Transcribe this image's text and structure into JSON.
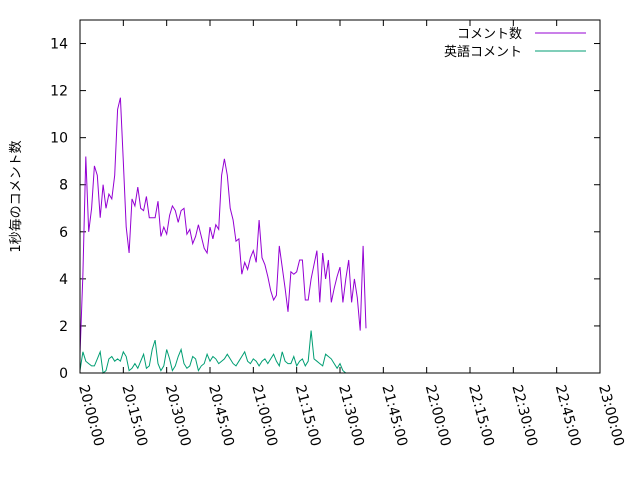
{
  "chart_data": {
    "type": "line",
    "title": "",
    "xlabel": "",
    "ylabel": "1秒毎のコメント数",
    "ylim": [
      0,
      15
    ],
    "xlim": [
      "20:00:00",
      "23:00:00"
    ],
    "yticks": [
      0,
      2,
      4,
      6,
      8,
      10,
      12,
      14
    ],
    "xticks": [
      "20:00:00",
      "20:15:00",
      "20:30:00",
      "20:45:00",
      "21:00:00",
      "21:15:00",
      "21:30:00",
      "21:45:00",
      "22:00:00",
      "22:15:00",
      "22:30:00",
      "22:45:00",
      "23:00:00"
    ],
    "legend_position": "top-right",
    "grid": false,
    "series": [
      {
        "name": "コメント数",
        "color": "#9400d3",
        "points": [
          [
            "20:00:00",
            0.8
          ],
          [
            "20:01:00",
            4.2
          ],
          [
            "20:02:00",
            9.2
          ],
          [
            "20:03:00",
            6.0
          ],
          [
            "20:04:00",
            7.0
          ],
          [
            "20:05:00",
            8.8
          ],
          [
            "20:06:00",
            8.4
          ],
          [
            "20:07:00",
            6.6
          ],
          [
            "20:08:00",
            8.0
          ],
          [
            "20:09:00",
            7.0
          ],
          [
            "20:10:00",
            7.6
          ],
          [
            "20:11:00",
            7.4
          ],
          [
            "20:12:00",
            8.4
          ],
          [
            "20:13:00",
            11.2
          ],
          [
            "20:14:00",
            11.7
          ],
          [
            "20:15:00",
            9.0
          ],
          [
            "20:16:00",
            6.2
          ],
          [
            "20:17:00",
            5.1
          ],
          [
            "20:18:00",
            7.4
          ],
          [
            "20:19:00",
            7.1
          ],
          [
            "20:20:00",
            7.9
          ],
          [
            "20:21:00",
            7.0
          ],
          [
            "20:22:00",
            6.9
          ],
          [
            "20:23:00",
            7.5
          ],
          [
            "20:24:00",
            6.6
          ],
          [
            "20:25:00",
            6.6
          ],
          [
            "20:26:00",
            6.6
          ],
          [
            "20:27:00",
            7.3
          ],
          [
            "20:28:00",
            5.8
          ],
          [
            "20:29:00",
            6.2
          ],
          [
            "20:30:00",
            5.9
          ],
          [
            "20:31:00",
            6.7
          ],
          [
            "20:32:00",
            7.1
          ],
          [
            "20:33:00",
            6.9
          ],
          [
            "20:34:00",
            6.4
          ],
          [
            "20:35:00",
            6.9
          ],
          [
            "20:36:00",
            7.0
          ],
          [
            "20:37:00",
            5.9
          ],
          [
            "20:38:00",
            6.1
          ],
          [
            "20:39:00",
            5.5
          ],
          [
            "20:40:00",
            5.8
          ],
          [
            "20:41:00",
            6.3
          ],
          [
            "20:42:00",
            5.8
          ],
          [
            "20:43:00",
            5.3
          ],
          [
            "20:44:00",
            5.1
          ],
          [
            "20:45:00",
            6.2
          ],
          [
            "20:46:00",
            5.7
          ],
          [
            "20:47:00",
            6.3
          ],
          [
            "20:48:00",
            6.1
          ],
          [
            "20:49:00",
            8.4
          ],
          [
            "20:50:00",
            9.1
          ],
          [
            "20:51:00",
            8.4
          ],
          [
            "20:52:00",
            7.0
          ],
          [
            "20:53:00",
            6.5
          ],
          [
            "20:54:00",
            5.6
          ],
          [
            "20:55:00",
            5.7
          ],
          [
            "20:56:00",
            4.2
          ],
          [
            "20:57:00",
            4.7
          ],
          [
            "20:58:00",
            4.4
          ],
          [
            "20:59:00",
            4.9
          ],
          [
            "21:00:00",
            5.2
          ],
          [
            "21:01:00",
            4.7
          ],
          [
            "21:02:00",
            6.5
          ],
          [
            "21:03:00",
            4.9
          ],
          [
            "21:04:00",
            4.6
          ],
          [
            "21:05:00",
            4.1
          ],
          [
            "21:06:00",
            3.5
          ],
          [
            "21:07:00",
            3.1
          ],
          [
            "21:08:00",
            3.3
          ],
          [
            "21:09:00",
            5.4
          ],
          [
            "21:10:00",
            4.5
          ],
          [
            "21:11:00",
            3.6
          ],
          [
            "21:12:00",
            2.6
          ],
          [
            "21:13:00",
            4.3
          ],
          [
            "21:14:00",
            4.2
          ],
          [
            "21:15:00",
            4.3
          ],
          [
            "21:16:00",
            4.8
          ],
          [
            "21:17:00",
            4.8
          ],
          [
            "21:18:00",
            3.1
          ],
          [
            "21:19:00",
            3.1
          ],
          [
            "21:20:00",
            4.0
          ],
          [
            "21:21:00",
            4.6
          ],
          [
            "21:22:00",
            5.2
          ],
          [
            "21:23:00",
            3.0
          ],
          [
            "21:24:00",
            5.1
          ],
          [
            "21:25:00",
            4.0
          ],
          [
            "21:26:00",
            4.8
          ],
          [
            "21:27:00",
            3.0
          ],
          [
            "21:28:00",
            3.6
          ],
          [
            "21:29:00",
            4.1
          ],
          [
            "21:30:00",
            4.5
          ],
          [
            "21:31:00",
            3.0
          ],
          [
            "21:32:00",
            4.0
          ],
          [
            "21:33:00",
            4.8
          ],
          [
            "21:34:00",
            3.0
          ],
          [
            "21:35:00",
            4.0
          ],
          [
            "21:36:00",
            3.2
          ],
          [
            "21:37:00",
            1.8
          ],
          [
            "21:38:00",
            5.4
          ],
          [
            "21:39:00",
            1.9
          ]
        ]
      },
      {
        "name": "英語コメント",
        "color": "#009e73",
        "points": [
          [
            "20:00:00",
            0.1
          ],
          [
            "20:01:00",
            0.9
          ],
          [
            "20:02:00",
            0.5
          ],
          [
            "20:03:00",
            0.4
          ],
          [
            "20:04:00",
            0.3
          ],
          [
            "20:05:00",
            0.3
          ],
          [
            "20:06:00",
            0.6
          ],
          [
            "20:07:00",
            0.9
          ],
          [
            "20:08:00",
            0.0
          ],
          [
            "20:09:00",
            0.1
          ],
          [
            "20:10:00",
            0.6
          ],
          [
            "20:11:00",
            0.7
          ],
          [
            "20:12:00",
            0.5
          ],
          [
            "20:13:00",
            0.6
          ],
          [
            "20:14:00",
            0.5
          ],
          [
            "20:15:00",
            0.9
          ],
          [
            "20:16:00",
            0.7
          ],
          [
            "20:17:00",
            0.1
          ],
          [
            "20:18:00",
            0.2
          ],
          [
            "20:19:00",
            0.4
          ],
          [
            "20:20:00",
            0.2
          ],
          [
            "20:21:00",
            0.5
          ],
          [
            "20:22:00",
            0.8
          ],
          [
            "20:23:00",
            0.2
          ],
          [
            "20:24:00",
            0.3
          ],
          [
            "20:25:00",
            1.0
          ],
          [
            "20:26:00",
            1.4
          ],
          [
            "20:27:00",
            0.4
          ],
          [
            "20:28:00",
            0.1
          ],
          [
            "20:29:00",
            0.3
          ],
          [
            "20:30:00",
            1.0
          ],
          [
            "20:31:00",
            0.6
          ],
          [
            "20:32:00",
            0.1
          ],
          [
            "20:33:00",
            0.3
          ],
          [
            "20:34:00",
            0.7
          ],
          [
            "20:35:00",
            1.0
          ],
          [
            "20:36:00",
            0.4
          ],
          [
            "20:37:00",
            0.2
          ],
          [
            "20:38:00",
            0.3
          ],
          [
            "20:39:00",
            0.7
          ],
          [
            "20:40:00",
            0.6
          ],
          [
            "20:41:00",
            0.1
          ],
          [
            "20:42:00",
            0.3
          ],
          [
            "20:43:00",
            0.4
          ],
          [
            "20:44:00",
            0.8
          ],
          [
            "20:45:00",
            0.5
          ],
          [
            "20:46:00",
            0.7
          ],
          [
            "20:47:00",
            0.6
          ],
          [
            "20:48:00",
            0.4
          ],
          [
            "20:49:00",
            0.5
          ],
          [
            "20:50:00",
            0.6
          ],
          [
            "20:51:00",
            0.8
          ],
          [
            "20:52:00",
            0.6
          ],
          [
            "20:53:00",
            0.4
          ],
          [
            "20:54:00",
            0.3
          ],
          [
            "20:55:00",
            0.5
          ],
          [
            "20:56:00",
            0.7
          ],
          [
            "20:57:00",
            0.9
          ],
          [
            "20:58:00",
            0.5
          ],
          [
            "20:59:00",
            0.4
          ],
          [
            "21:00:00",
            0.6
          ],
          [
            "21:01:00",
            0.5
          ],
          [
            "21:02:00",
            0.3
          ],
          [
            "21:03:00",
            0.5
          ],
          [
            "21:04:00",
            0.6
          ],
          [
            "21:05:00",
            0.4
          ],
          [
            "21:06:00",
            0.6
          ],
          [
            "21:07:00",
            0.8
          ],
          [
            "21:08:00",
            0.5
          ],
          [
            "21:09:00",
            0.3
          ],
          [
            "21:10:00",
            0.9
          ],
          [
            "21:11:00",
            0.5
          ],
          [
            "21:12:00",
            0.4
          ],
          [
            "21:13:00",
            0.4
          ],
          [
            "21:14:00",
            0.7
          ],
          [
            "21:15:00",
            0.3
          ],
          [
            "21:16:00",
            0.5
          ],
          [
            "21:17:00",
            0.6
          ],
          [
            "21:18:00",
            0.3
          ],
          [
            "21:19:00",
            0.5
          ],
          [
            "21:20:00",
            1.8
          ],
          [
            "21:21:00",
            0.6
          ],
          [
            "21:22:00",
            0.5
          ],
          [
            "21:23:00",
            0.4
          ],
          [
            "21:24:00",
            0.3
          ],
          [
            "21:25:00",
            0.8
          ],
          [
            "21:26:00",
            0.7
          ],
          [
            "21:27:00",
            0.6
          ],
          [
            "21:28:00",
            0.4
          ],
          [
            "21:29:00",
            0.2
          ],
          [
            "21:30:00",
            0.4
          ],
          [
            "21:31:00",
            0.1
          ],
          [
            "21:32:00",
            0.0
          ]
        ]
      }
    ]
  }
}
